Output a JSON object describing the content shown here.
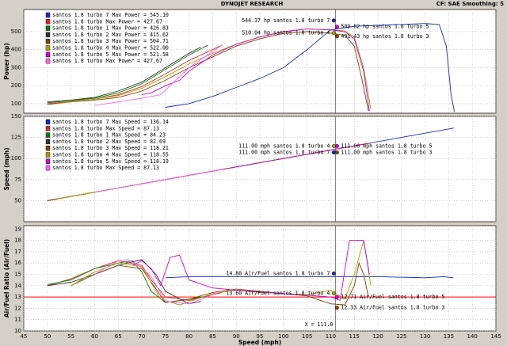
{
  "header": {
    "title": "DYNOJET RESEARCH",
    "settings": "CF: SAE  Smoothing: 5"
  },
  "chart_data": [
    {
      "type": "line",
      "y_label": "Power (hp)",
      "xlim": [
        45,
        145
      ],
      "xticks": [
        45,
        50,
        55,
        60,
        65,
        70,
        75,
        80,
        85,
        90,
        95,
        100,
        105,
        110,
        115,
        120,
        125,
        130,
        135,
        140,
        145
      ],
      "ylim": [
        47,
        623
      ],
      "yticks": [
        100,
        200,
        300,
        400,
        500
      ],
      "grid": true,
      "legend": "upper left",
      "series": [
        {
          "name": "santos 1.8 turbo 7 Max Power = 545.10",
          "color": "#1428c8",
          "x": [
            75,
            80,
            85,
            90,
            95,
            100,
            105,
            110,
            115,
            120,
            125,
            130,
            133,
            134.5,
            135.5,
            136.2
          ],
          "values": [
            80,
            100,
            140,
            190,
            240,
            300,
            400,
            510,
            530,
            535,
            540,
            545,
            540,
            420,
            150,
            55
          ]
        },
        {
          "name": "santos 1.8 turbo Max Power = 427.67",
          "color": "#e02828",
          "x": [
            50,
            55,
            60,
            65,
            70,
            75,
            80,
            85,
            87
          ],
          "values": [
            100,
            112,
            125,
            150,
            195,
            265,
            340,
            400,
            425
          ]
        },
        {
          "name": "santos 1.8 turbo 1 Max Power = 426.83",
          "color": "#008000",
          "x": [
            50,
            55,
            60,
            65,
            70,
            75,
            80,
            84
          ],
          "values": [
            105,
            118,
            130,
            160,
            210,
            290,
            370,
            425
          ]
        },
        {
          "name": "santos 1.8 turbo 2 Max Power = 415.62",
          "color": "#303030",
          "x": [
            50,
            55,
            60,
            65,
            70,
            75,
            80,
            82.5
          ],
          "values": [
            110,
            120,
            135,
            170,
            220,
            300,
            380,
            414
          ]
        },
        {
          "name": "santos 1.8 turbo 3 Max Power = 504.71",
          "color": "#804000",
          "x": [
            50,
            55,
            60,
            65,
            70,
            75,
            80,
            85,
            90,
            95,
            100,
            105,
            110,
            113,
            115,
            116.5,
            118
          ],
          "values": [
            95,
            110,
            120,
            135,
            170,
            230,
            300,
            360,
            420,
            460,
            490,
            500,
            492,
            480,
            420,
            250,
            60
          ]
        },
        {
          "name": "santos 1.8 turbo 4 Max Power = 522.00",
          "color": "#a0a000",
          "x": [
            52,
            55,
            60,
            65,
            70,
            75,
            80,
            85,
            90,
            95,
            100,
            105,
            110,
            113,
            115,
            117,
            118.5
          ],
          "values": [
            100,
            112,
            125,
            145,
            185,
            250,
            320,
            380,
            430,
            470,
            500,
            515,
            510,
            505,
            470,
            300,
            70
          ]
        },
        {
          "name": "santos 1.8 turbo 5 Max Power = 521.58",
          "color": "#d000d0",
          "x": [
            70,
            72,
            75,
            78,
            80,
            85,
            90,
            95,
            100,
            105,
            110,
            113,
            115,
            117,
            118.2
          ],
          "values": [
            150,
            160,
            200,
            230,
            280,
            370,
            430,
            470,
            500,
            515,
            510,
            500,
            460,
            280,
            60
          ]
        },
        {
          "name": "santos 1.8 turbo Max Power = 427.67",
          "color": "#ff60ff",
          "x": [
            60,
            65,
            70,
            74,
            76,
            78,
            80,
            85,
            87.1
          ],
          "values": [
            90,
            110,
            130,
            150,
            200,
            250,
            300,
            390,
            427
          ]
        }
      ],
      "annotations": [
        {
          "text": "544.37 hp santos 1.8 turbo 7",
          "x": 111,
          "y": 544.37,
          "color": "#1428c8"
        },
        {
          "text": "509.82 hp santos 1.8 turbo 5",
          "x": 111,
          "y": 509.82,
          "color": "#d000d0"
        },
        {
          "text": "510.04 hp santos 1.8 turbo 4",
          "x": 111,
          "y": 510.04,
          "color": "#a0a000"
        },
        {
          "text": "491.43 hp santos 1.8 turbo 3",
          "x": 111,
          "y": 491.43,
          "color": "#804000"
        }
      ]
    },
    {
      "type": "line",
      "y_label": "Speed (mph)",
      "xlim": [
        45,
        145
      ],
      "xticks": [
        45,
        50,
        55,
        60,
        65,
        70,
        75,
        80,
        85,
        90,
        95,
        100,
        105,
        110,
        115,
        120,
        125,
        130,
        135,
        140,
        145
      ],
      "ylim": [
        25,
        150
      ],
      "yticks": [
        50,
        75,
        100,
        125,
        150
      ],
      "grid": true,
      "legend": "upper left",
      "series": [
        {
          "name": "santos 1.8 turbo 7 Max Speed = 136.14",
          "color": "#1428c8",
          "x": [
            75,
            136.14
          ],
          "values": [
            75,
            136.14
          ]
        },
        {
          "name": "santos 1.8 turbo Max Speed = 87.13",
          "color": "#e02828",
          "x": [
            50,
            87.13
          ],
          "values": [
            50,
            87.13
          ]
        },
        {
          "name": "santos 1.8 turbo 1 Max Speed = 84.23",
          "color": "#008000",
          "x": [
            50,
            84.23
          ],
          "values": [
            50,
            84.23
          ]
        },
        {
          "name": "santos 1.8 turbo 2 Max Speed = 82.69",
          "color": "#303030",
          "x": [
            50,
            82.69
          ],
          "values": [
            50,
            82.69
          ]
        },
        {
          "name": "santos 1.8 turbo 3 Max Speed = 118.21",
          "color": "#804000",
          "x": [
            50,
            118.21
          ],
          "values": [
            50,
            118.21
          ]
        },
        {
          "name": "santos 1.8 turbo 4 Max Speed = 118.55",
          "color": "#a0a000",
          "x": [
            52,
            118.55
          ],
          "values": [
            52,
            118.55
          ]
        },
        {
          "name": "santos 1.8 turbo 5 Max Speed = 118.19",
          "color": "#d000d0",
          "x": [
            70,
            118.19
          ],
          "values": [
            70,
            118.19
          ]
        },
        {
          "name": "santos 1.8 turbo Max Speed = 87.13",
          "color": "#ff60ff",
          "x": [
            60,
            87.13
          ],
          "values": [
            60,
            87.13
          ]
        }
      ],
      "annotations": [
        {
          "text": "111.00 mph santos 1.8 turbo 4",
          "x": 111,
          "y": 111,
          "color": "#a0a000"
        },
        {
          "text": "111.00 mph santos 1.8 turbo 5",
          "x": 111,
          "y": 111,
          "color": "#d000d0"
        },
        {
          "text": "111.00 mph santos 1.8 turbo 7",
          "x": 111,
          "y": 111,
          "color": "#1428c8"
        },
        {
          "text": "111.00 mph santos 1.8 turbo 3",
          "x": 111,
          "y": 111,
          "color": "#804000"
        }
      ]
    },
    {
      "type": "line",
      "y_label": "Air/Fuel Ratio (Air/Fuel)",
      "x_label": "Speed (mph)",
      "xlim": [
        45,
        145
      ],
      "xticks": [
        45,
        50,
        55,
        60,
        65,
        70,
        75,
        80,
        85,
        90,
        95,
        100,
        105,
        110,
        115,
        120,
        125,
        130,
        135,
        140,
        145
      ],
      "ylim": [
        10,
        19.3
      ],
      "yticks": [
        10,
        11,
        12,
        13,
        14,
        15,
        16,
        17,
        18,
        19
      ],
      "grid": true,
      "legend": false,
      "hline": {
        "value": 13,
        "color": "#ff0000"
      },
      "cursor": {
        "x": 111,
        "label": "X = 111.0"
      },
      "series": [
        {
          "name": "santos 1.8 turbo 7",
          "color": "#1428c8",
          "x": [
            75,
            80,
            90,
            100,
            110,
            120,
            130,
            134,
            136
          ],
          "values": [
            14.7,
            14.8,
            14.8,
            14.8,
            14.8,
            14.8,
            14.7,
            14.8,
            14.7
          ]
        },
        {
          "name": "santos 1.8 turbo",
          "color": "#e02828",
          "x": [
            50,
            55,
            60,
            65,
            70,
            72,
            75,
            80,
            85,
            87
          ],
          "values": [
            14.0,
            14.6,
            15.5,
            16.2,
            15.8,
            14.5,
            13.0,
            12.7,
            13.2,
            13.4
          ]
        },
        {
          "name": "santos 1.8 turbo 1",
          "color": "#008000",
          "x": [
            50,
            55,
            60,
            65,
            68,
            70,
            72,
            75,
            80,
            84
          ],
          "values": [
            14.1,
            14.5,
            15.5,
            16.0,
            16.2,
            15.2,
            13.5,
            12.5,
            12.8,
            13.1
          ]
        },
        {
          "name": "santos 1.8 turbo 2",
          "color": "#303030",
          "x": [
            50,
            55,
            60,
            65,
            70,
            73,
            75,
            80,
            82.5
          ],
          "values": [
            14.0,
            14.3,
            15.0,
            15.8,
            16.3,
            15,
            13.5,
            12.4,
            12.6
          ]
        },
        {
          "name": "santos 1.8 turbo 3",
          "color": "#804000",
          "x": [
            55,
            60,
            65,
            70,
            75,
            80,
            85,
            90,
            95,
            100,
            105,
            110,
            113,
            115,
            116,
            117,
            118
          ],
          "values": [
            14.0,
            15.0,
            15.8,
            15.5,
            12.5,
            12.8,
            13.4,
            13.7,
            13.5,
            13.3,
            13.1,
            12.4,
            12.3,
            14,
            16,
            15,
            13
          ]
        },
        {
          "name": "santos 1.8 turbo 4",
          "color": "#a0a000",
          "x": [
            55,
            60,
            65,
            70,
            74,
            78,
            85,
            90,
            95,
            100,
            105,
            110,
            113,
            115,
            117,
            118.5
          ],
          "values": [
            14.0,
            15.2,
            16.0,
            15.7,
            12.8,
            12.3,
            13.3,
            13.6,
            13.4,
            13.3,
            13.2,
            13.6,
            12.8,
            15,
            18,
            14
          ]
        },
        {
          "name": "santos 1.8 turbo 5",
          "color": "#d000d0",
          "x": [
            68,
            70,
            72,
            74,
            76,
            78,
            80,
            85,
            90,
            100,
            110,
            112,
            114,
            116,
            117,
            118.2
          ],
          "values": [
            15.8,
            16.2,
            15.5,
            14.0,
            16.5,
            16.7,
            14.5,
            13.8,
            13.6,
            13.3,
            13.0,
            12.7,
            18,
            18,
            18,
            15
          ]
        },
        {
          "name": "santos 1.8 turbo",
          "color": "#ff60ff",
          "x": [
            60,
            65,
            67,
            70,
            72,
            75,
            80,
            85,
            87
          ],
          "values": [
            15,
            16.2,
            16.3,
            15.6,
            14.8,
            12.6,
            12.4,
            13.2,
            13.5
          ]
        }
      ],
      "annotations": [
        {
          "text": "14.80 Air/Fuel santos 1.8 turbo 7",
          "x": 111,
          "y": 14.8,
          "color": "#1428c8"
        },
        {
          "text": "12.71 Air/Fuel santos 1.8 turbo 5",
          "x": 111,
          "y": 12.71,
          "color": "#d000d0"
        },
        {
          "text": "13.60 Air/Fuel santos 1.8 turbo 4",
          "x": 111,
          "y": 13.6,
          "color": "#a0a000"
        },
        {
          "text": "12.33 Air/Fuel santos 1.8 turbo 3",
          "x": 111,
          "y": 12.33,
          "color": "#804000"
        }
      ]
    }
  ]
}
